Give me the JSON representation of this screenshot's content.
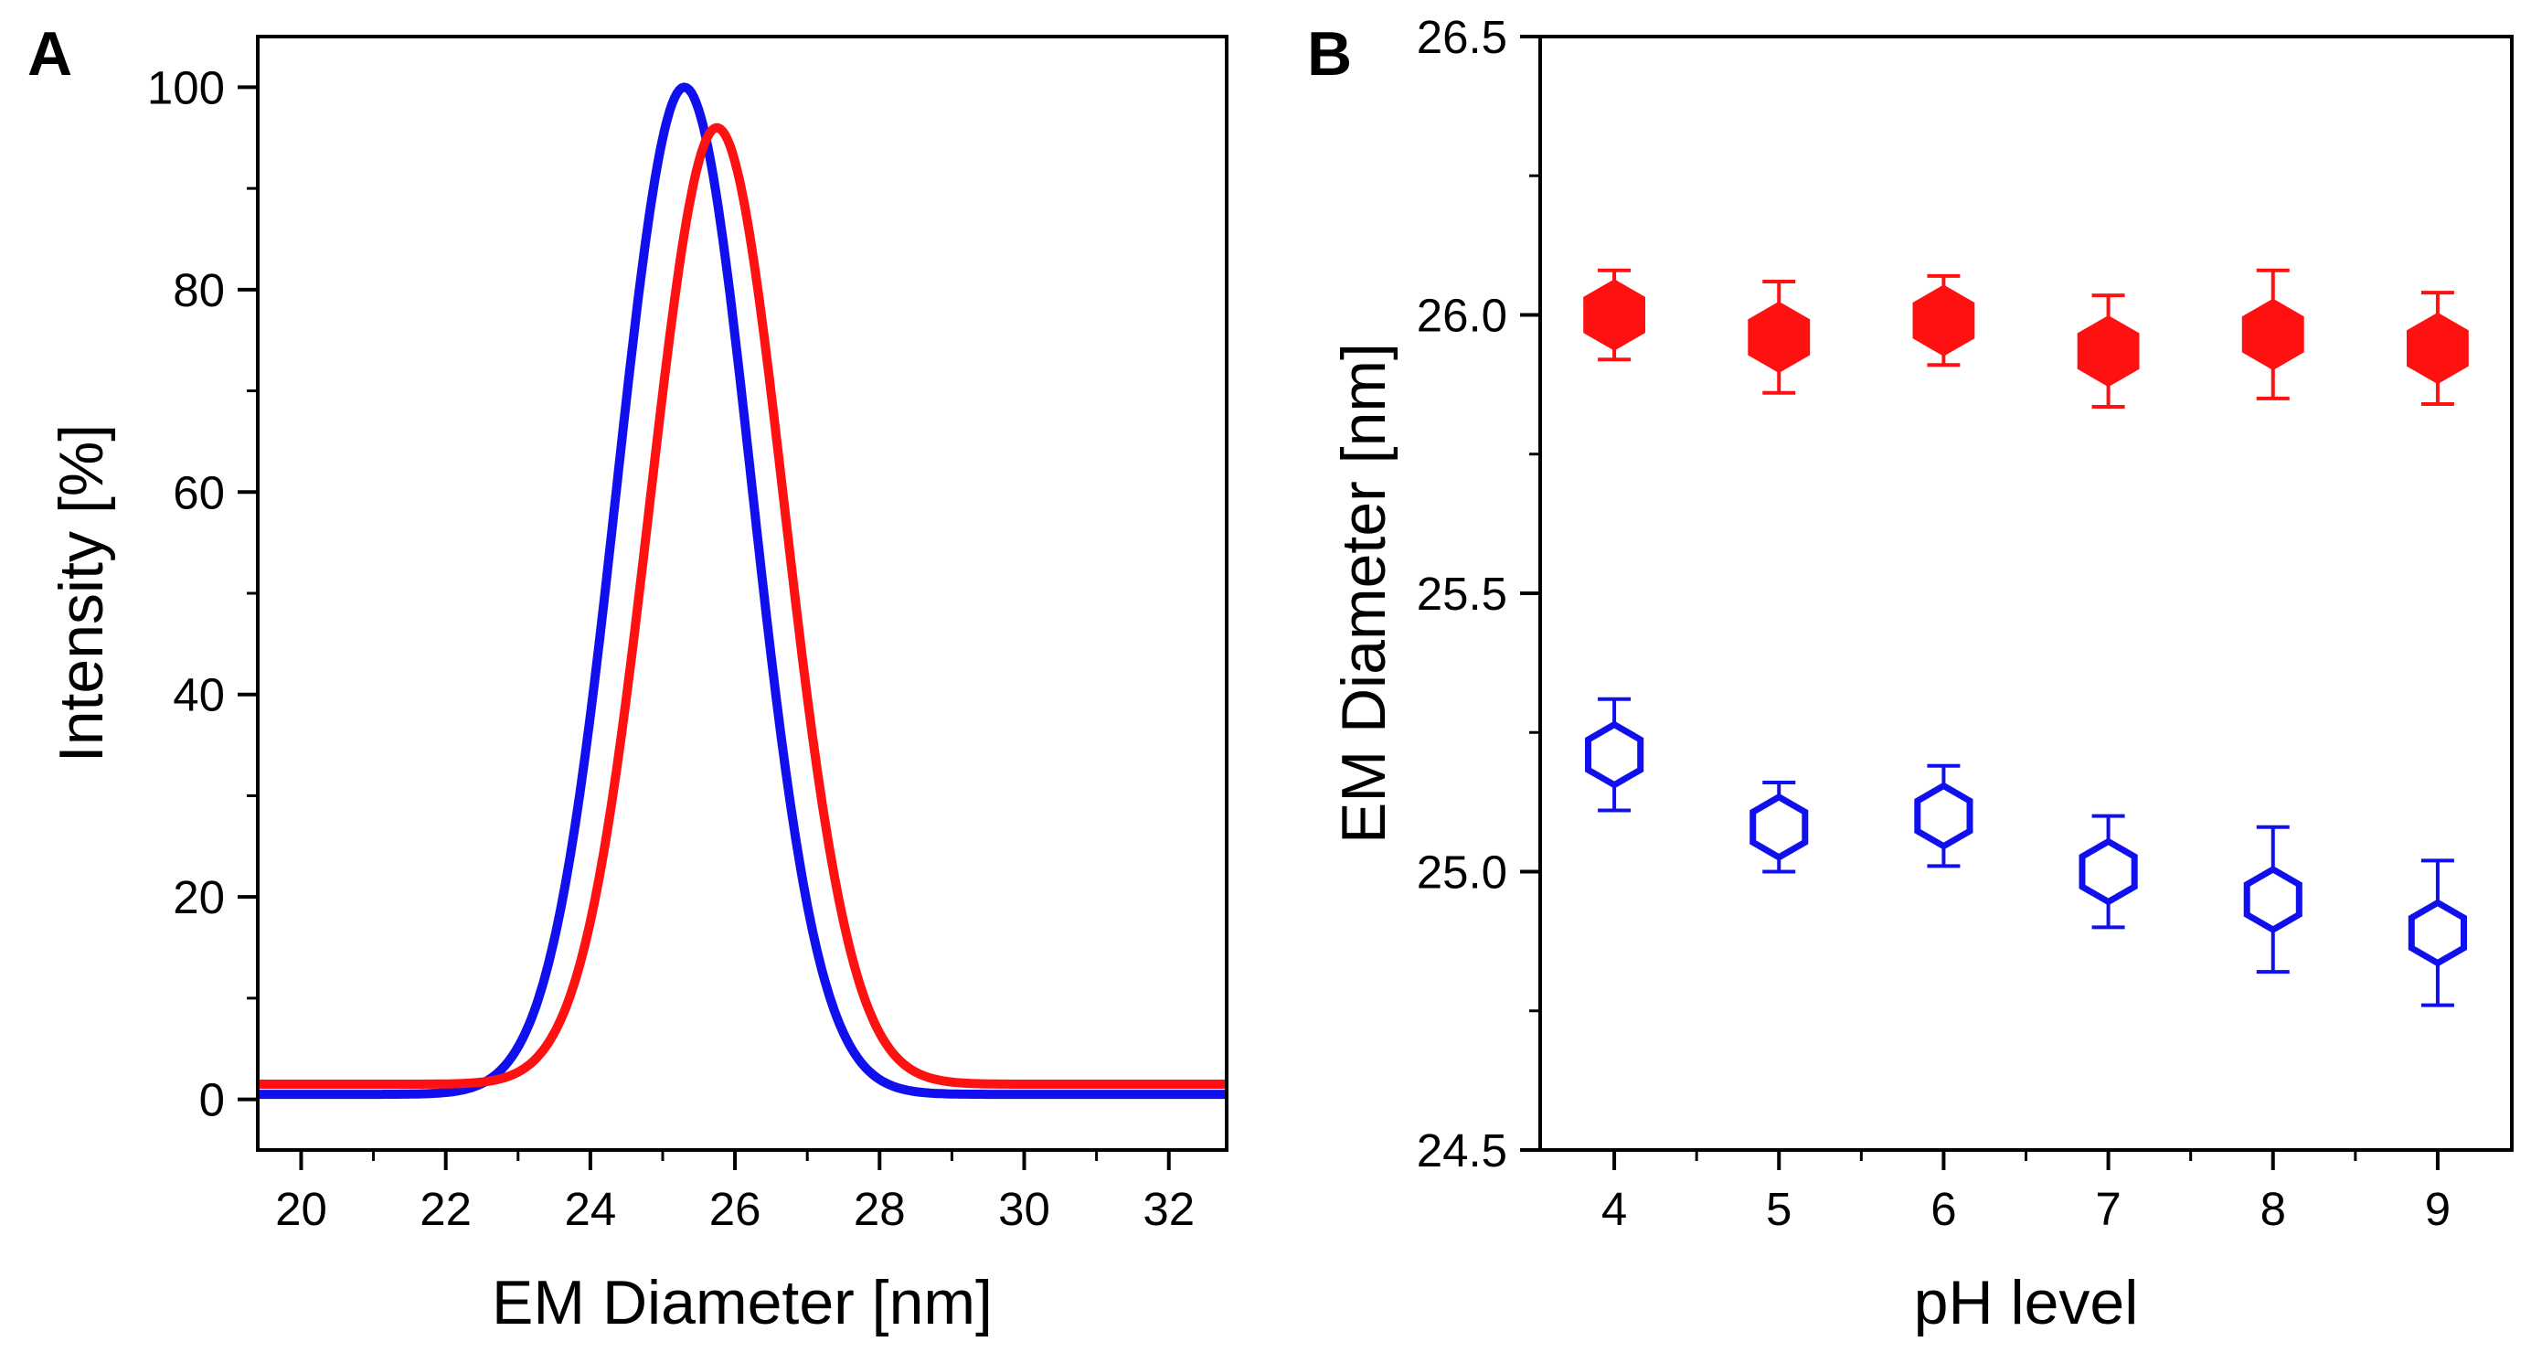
{
  "colors": {
    "series1": "#1010ee",
    "series2": "#ff1111",
    "axis": "#000000"
  },
  "chart_data": [
    {
      "panel": "A",
      "type": "line",
      "title": "",
      "xlabel": "EM Diameter [nm]",
      "ylabel": "Intensity [%]",
      "xlim": [
        19.4,
        32.8
      ],
      "ylim": [
        -5,
        105
      ],
      "xticks": [
        20,
        22,
        24,
        26,
        28,
        30,
        32
      ],
      "xtick_labels": [
        "20",
        "22",
        "24",
        "26",
        "28",
        "30",
        "32"
      ],
      "yticks": [
        0,
        20,
        40,
        60,
        80,
        100
      ],
      "ytick_labels": [
        "0",
        "20",
        "40",
        "60",
        "80",
        "100"
      ],
      "series": [
        {
          "name": "blue",
          "color": "#1010ee",
          "peak_x": 25.3,
          "peak_y": 100,
          "sigma": 0.93,
          "baseline": 0.5
        },
        {
          "name": "red",
          "color": "#ff1111",
          "peak_x": 25.75,
          "peak_y": 96,
          "sigma": 0.93,
          "baseline": 1.5
        }
      ]
    },
    {
      "panel": "B",
      "type": "scatter",
      "title": "",
      "xlabel": "pH level",
      "ylabel": "EM Diameter [nm]",
      "xlim": [
        3.55,
        9.45
      ],
      "ylim": [
        24.5,
        26.5
      ],
      "xticks": [
        4,
        5,
        6,
        7,
        8,
        9
      ],
      "xtick_labels": [
        "4",
        "5",
        "6",
        "7",
        "8",
        "9"
      ],
      "yticks": [
        24.5,
        25.0,
        25.5,
        26.0,
        26.5
      ],
      "ytick_labels": [
        "24.5",
        "25.0",
        "25.5",
        "26.0",
        "26.5"
      ],
      "series": [
        {
          "name": "red filled hexagons",
          "color": "#ff1111",
          "filled": true,
          "x": [
            4,
            5,
            6,
            7,
            8,
            9
          ],
          "y": [
            26.0,
            25.96,
            25.99,
            25.935,
            25.965,
            25.94
          ],
          "err": [
            0.08,
            0.1,
            0.08,
            0.1,
            0.115,
            0.1
          ]
        },
        {
          "name": "blue open hexagons",
          "color": "#1010ee",
          "filled": false,
          "x": [
            4,
            5,
            6,
            7,
            8,
            9
          ],
          "y": [
            25.21,
            25.08,
            25.1,
            25.0,
            24.95,
            24.89
          ],
          "err": [
            0.1,
            0.08,
            0.09,
            0.1,
            0.13,
            0.13
          ]
        }
      ]
    }
  ]
}
